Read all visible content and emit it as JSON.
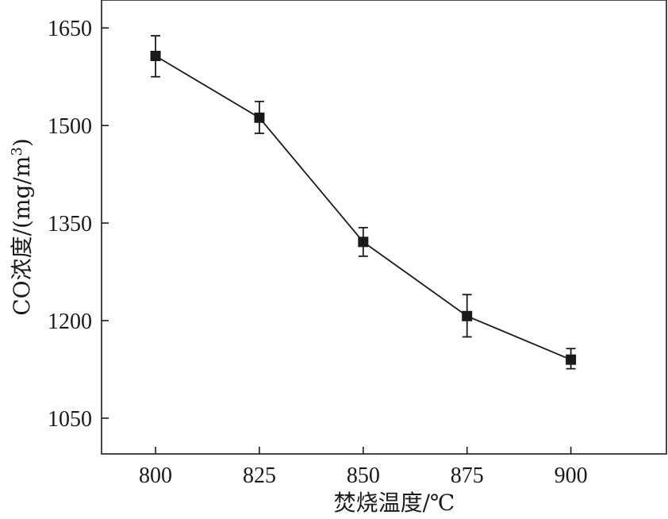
{
  "chart_data": {
    "type": "line",
    "title": "",
    "xlabel": "焚烧温度/℃",
    "ylabel_main": "CO浓度/(mg/m",
    "ylabel_sup": "3",
    "ylabel_close": ")",
    "x": [
      800,
      825,
      850,
      875,
      900
    ],
    "x_tick_labels": [
      "800",
      "825",
      "850",
      "875",
      "900"
    ],
    "xlim": [
      787,
      923
    ],
    "y_ticks": [
      1050,
      1200,
      1350,
      1500,
      1650
    ],
    "y_tick_labels": [
      "1050",
      "1200",
      "1350",
      "1500",
      "1650"
    ],
    "ylim": [
      995,
      1693
    ],
    "series": [
      {
        "values": [
          1607,
          1512,
          1321,
          1207,
          1140
        ],
        "err_low": [
          1575,
          1488,
          1299,
          1175,
          1126
        ],
        "err_high": [
          1638,
          1537,
          1343,
          1240,
          1157
        ],
        "marker": "square",
        "color": "#1a1a1a"
      }
    ],
    "grid": false,
    "legend": "none"
  }
}
